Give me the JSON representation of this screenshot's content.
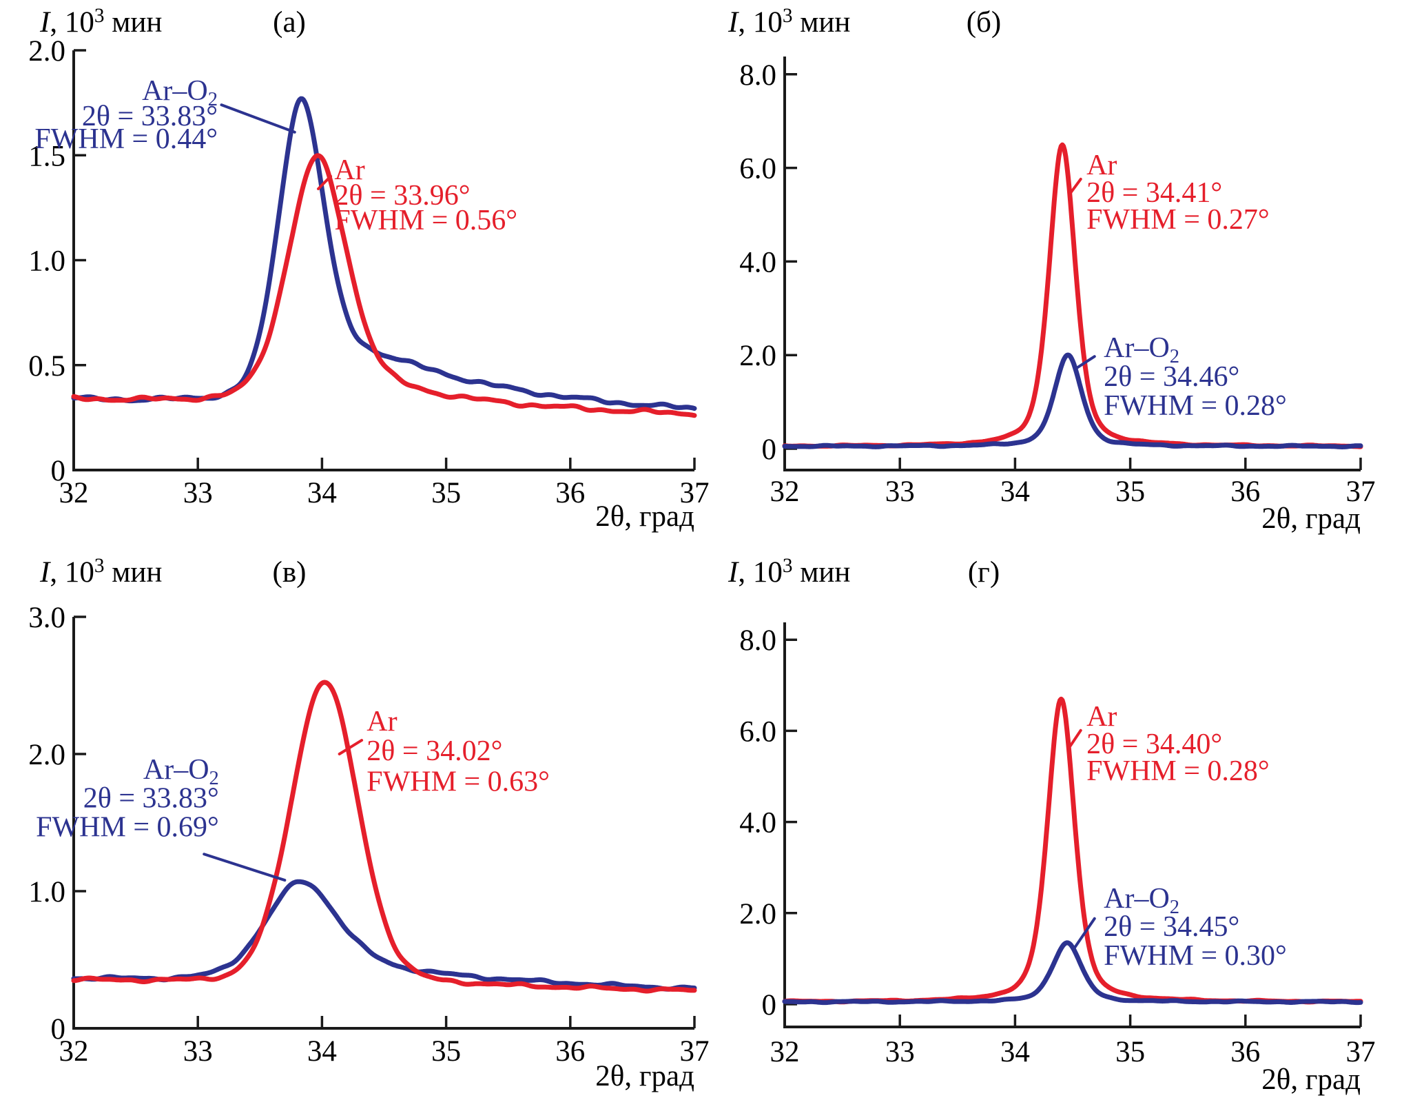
{
  "figure": {
    "description": "Four XRD intensity panels comparing Ar and Ar-O2 sputtering atmospheres",
    "x_axis_label": "2θ, град",
    "y_axis_label": "*I*, 10^3 мин"
  },
  "colors": {
    "red": "#e51f2b",
    "blue": "#2c3390",
    "axis": "#1a1a1a"
  },
  "chart_data": [
    {
      "id": "a",
      "type": "line",
      "panel_label": "(а)",
      "ylabel": "*I*, 10^3 мин",
      "xlabel": "2θ, град",
      "x_range": [
        32,
        37
      ],
      "x_ticks": [
        32,
        33,
        34,
        35,
        36,
        37
      ],
      "y_ticks": [
        {
          "v": 0,
          "label": "0"
        },
        {
          "v": 0.5,
          "label": "0.5"
        },
        {
          "v": 1.0,
          "label": "1.0"
        },
        {
          "v": 1.5,
          "label": "1.5"
        },
        {
          "v": 2.0,
          "label": "2.0"
        }
      ],
      "series": [
        {
          "name": "Ar–O_2",
          "color": "blue",
          "peak_center": 33.83,
          "peak_height": 1.77,
          "fwhm": 0.44,
          "baseline_start": 0.335,
          "baseline_end": 0.265,
          "eta": 0.25,
          "tail_amp": 0.42,
          "tail_tau": 1.15,
          "tail_onset": 0.3,
          "noise": 0.012,
          "seed": 1.3,
          "annotation": {
            "align": "end",
            "x": 33.16,
            "lines": [
              {
                "text": "Ar–O_2",
                "y": 1.763
              },
              {
                "text": "2θ = 33.83°",
                "y": 1.642
              },
              {
                "text": "FWHM = 0.44°",
                "y": 1.534
              }
            ],
            "leader": [
              [
                33.19,
                1.74
              ],
              [
                33.78,
                1.61
              ]
            ]
          }
        },
        {
          "name": "Ar",
          "color": "red",
          "peak_center": 33.96,
          "peak_height": 1.49,
          "fwhm": 0.56,
          "baseline_start": 0.335,
          "baseline_end": 0.26,
          "eta": 0.25,
          "tail_amp": 0.16,
          "tail_tau": 0.9,
          "tail_onset": 0.3,
          "noise": 0.012,
          "seed": 2.7,
          "annotation": {
            "align": "start",
            "x": 34.1,
            "lines": [
              {
                "text": "Ar",
                "y": 1.386
              },
              {
                "text": "2θ = 33.96°",
                "y": 1.264
              },
              {
                "text": "FWHM = 0.56°",
                "y": 1.146
              }
            ],
            "leader": [
              [
                34.07,
                1.4
              ],
              [
                33.97,
                1.34
              ]
            ]
          }
        }
      ]
    },
    {
      "id": "b",
      "type": "line",
      "panel_label": "(б)",
      "ylabel": "*I*, 10^3 мин",
      "xlabel": "2θ, град",
      "x_range": [
        32,
        37
      ],
      "x_ticks": [
        32,
        33,
        34,
        35,
        36,
        37
      ],
      "y_ticks": [
        {
          "v": 0,
          "label": "0"
        },
        {
          "v": 2.0,
          "label": "2.0"
        },
        {
          "v": 4.0,
          "label": "4.0"
        },
        {
          "v": 6.0,
          "label": "6.0"
        },
        {
          "v": 8.0,
          "label": "8.0"
        }
      ],
      "series": [
        {
          "name": "Ar",
          "color": "red",
          "peak_center": 34.41,
          "peak_height": 6.5,
          "fwhm": 0.27,
          "baseline_start": 0.05,
          "baseline_end": 0.05,
          "eta": 0.45,
          "tail_amp": 0,
          "tail_tau": 1,
          "tail_onset": 0.3,
          "noise": 0.018,
          "seed": 3.1,
          "annotation": {
            "align": "start",
            "x": 34.62,
            "lines": [
              {
                "text": "Ar",
                "y": 5.86
              },
              {
                "text": "2θ = 34.41°",
                "y": 5.27
              },
              {
                "text": "FWHM = 0.27°",
                "y": 4.7
              }
            ],
            "leader": [
              [
                34.57,
                5.76
              ],
              [
                34.48,
                5.46
              ]
            ]
          }
        },
        {
          "name": "Ar–O_2",
          "color": "blue",
          "peak_center": 34.46,
          "peak_height": 2.0,
          "fwhm": 0.28,
          "baseline_start": 0.05,
          "baseline_end": 0.05,
          "eta": 0.45,
          "tail_amp": 0,
          "tail_tau": 1,
          "tail_onset": 0.3,
          "noise": 0.018,
          "seed": 4.6,
          "annotation": {
            "align": "start",
            "x": 34.77,
            "lines": [
              {
                "text": "Ar–O_2",
                "y": 1.96
              },
              {
                "text": "2θ = 34.46°",
                "y": 1.34
              },
              {
                "text": "FWHM = 0.28°",
                "y": 0.72
              }
            ],
            "leader": [
              [
                34.69,
                1.97
              ],
              [
                34.52,
                1.7
              ]
            ]
          }
        }
      ]
    },
    {
      "id": "v",
      "type": "line",
      "panel_label": "(в)",
      "ylabel": "*I*, 10^3 мин",
      "xlabel": "2θ, град",
      "x_range": [
        32,
        37
      ],
      "x_ticks": [
        32,
        33,
        34,
        35,
        36,
        37
      ],
      "y_ticks": [
        {
          "v": 0,
          "label": "0"
        },
        {
          "v": 1.0,
          "label": "1.0"
        },
        {
          "v": 2.0,
          "label": "2.0"
        },
        {
          "v": 3.0,
          "label": "3.0"
        }
      ],
      "series": [
        {
          "name": "Ar–O_2",
          "color": "blue",
          "peak_center": 33.83,
          "peak_height": 1.07,
          "fwhm": 0.69,
          "baseline_start": 0.36,
          "baseline_end": 0.27,
          "eta": 0.3,
          "tail_amp": 0.17,
          "tail_tau": 1.4,
          "tail_onset": 0.35,
          "noise": 0.014,
          "seed": 5.2,
          "annotation": {
            "align": "end",
            "x": 33.17,
            "lines": [
              {
                "text": "Ar–O_2",
                "y": 1.82
              },
              {
                "text": "2θ = 33.83°",
                "y": 1.61
              },
              {
                "text": "FWHM = 0.69°",
                "y": 1.4
              }
            ],
            "leader": [
              [
                33.05,
                1.27
              ],
              [
                33.7,
                1.08
              ]
            ]
          }
        },
        {
          "name": "Ar",
          "color": "red",
          "peak_center": 34.02,
          "peak_height": 2.53,
          "fwhm": 0.63,
          "baseline_start": 0.35,
          "baseline_end": 0.27,
          "eta": 0.12,
          "tail_amp": 0.05,
          "tail_tau": 1.0,
          "tail_onset": 0.3,
          "noise": 0.014,
          "seed": 6.8,
          "annotation": {
            "align": "start",
            "x": 34.36,
            "lines": [
              {
                "text": "Ar",
                "y": 2.17
              },
              {
                "text": "2θ = 34.02°",
                "y": 1.955
              },
              {
                "text": "FWHM = 0.63°",
                "y": 1.73
              }
            ],
            "leader": [
              [
                34.32,
                2.1
              ],
              [
                34.14,
                2.0
              ]
            ]
          }
        }
      ]
    },
    {
      "id": "g",
      "type": "line",
      "panel_label": "(г)",
      "ylabel": "*I*, 10^3 мин",
      "xlabel": "2θ, град",
      "x_range": [
        32,
        37
      ],
      "x_ticks": [
        32,
        33,
        34,
        35,
        36,
        37
      ],
      "y_ticks": [
        {
          "v": 0,
          "label": "0"
        },
        {
          "v": 2.0,
          "label": "2.0"
        },
        {
          "v": 4.0,
          "label": "4.0"
        },
        {
          "v": 6.0,
          "label": "6.0"
        },
        {
          "v": 8.0,
          "label": "8.0"
        }
      ],
      "series": [
        {
          "name": "Ar",
          "color": "red",
          "peak_center": 34.4,
          "peak_height": 6.7,
          "fwhm": 0.28,
          "baseline_start": 0.05,
          "baseline_end": 0.05,
          "eta": 0.45,
          "tail_amp": 0,
          "tail_tau": 1,
          "tail_onset": 0.3,
          "noise": 0.018,
          "seed": 7.4,
          "annotation": {
            "align": "start",
            "x": 34.62,
            "lines": [
              {
                "text": "Ar",
                "y": 6.11
              },
              {
                "text": "2θ = 34.40°",
                "y": 5.51
              },
              {
                "text": "FWHM = 0.28°",
                "y": 4.92
              }
            ],
            "leader": [
              [
                34.57,
                6.01
              ],
              [
                34.48,
                5.67
              ]
            ]
          }
        },
        {
          "name": "Ar–O_2",
          "color": "blue",
          "peak_center": 34.45,
          "peak_height": 1.35,
          "fwhm": 0.3,
          "baseline_start": 0.05,
          "baseline_end": 0.05,
          "eta": 0.45,
          "tail_amp": 0,
          "tail_tau": 1,
          "tail_onset": 0.3,
          "noise": 0.018,
          "seed": 8.9,
          "annotation": {
            "align": "start",
            "x": 34.77,
            "lines": [
              {
                "text": "Ar–O_2",
                "y": 2.12
              },
              {
                "text": "2θ = 34.45°",
                "y": 1.5
              },
              {
                "text": "FWHM = 0.30°",
                "y": 0.86
              }
            ],
            "leader": [
              [
                34.69,
                1.88
              ],
              [
                34.52,
                1.25
              ]
            ]
          }
        }
      ]
    }
  ]
}
